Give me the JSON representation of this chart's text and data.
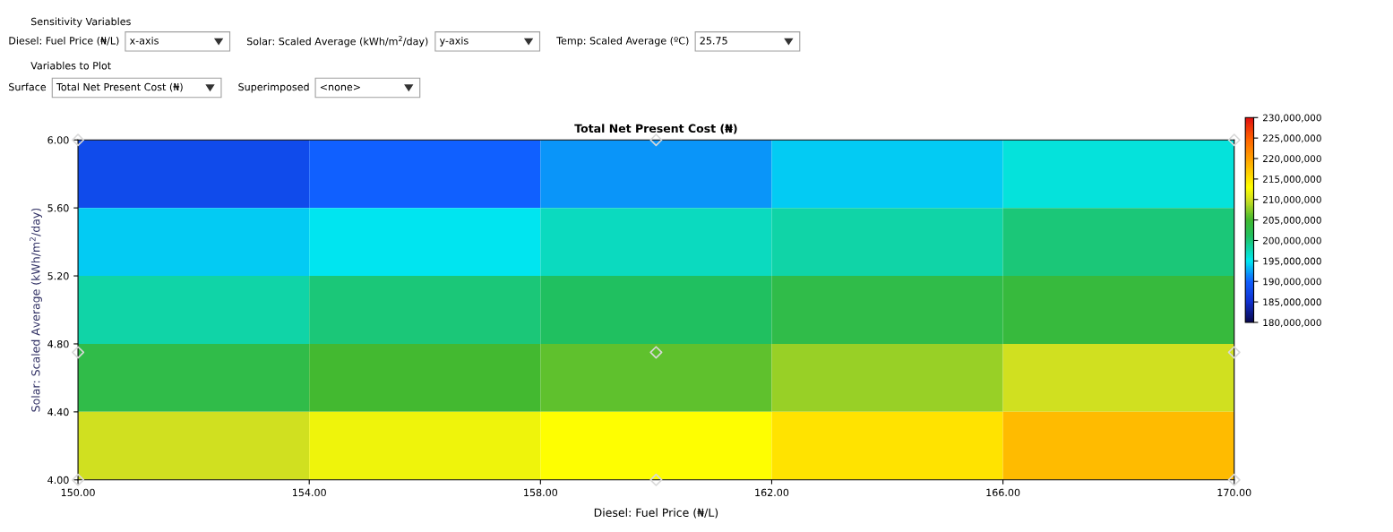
{
  "chart_data": {
    "type": "heatmap",
    "title": "Total Net Present Cost (₦)",
    "xlabel": "Diesel: Fuel Price (₦/L)",
    "ylabel": "Solar: Scaled Average (kWh/m$^{2}$/day)",
    "x": [
      152,
      156,
      160,
      164,
      168
    ],
    "y": [
      5.8,
      5.4,
      5.0,
      4.6,
      4.2
    ],
    "cells": [
      [
        188000000,
        190000000,
        192000000,
        194000000,
        196000000
      ],
      [
        194000000,
        195000000,
        197000000,
        198000000,
        200000000
      ],
      [
        198000000,
        200000000,
        201000000,
        203000000,
        204000000
      ],
      [
        203000000,
        205000000,
        206000000,
        208000000,
        210000000
      ],
      [
        210000000,
        212000000,
        213000000,
        215000000,
        218000000
      ]
    ],
    "clim": [
      180000000,
      230000000
    ],
    "cticks": [
      {
        "value": 180000000,
        "label": "180,000,000"
      },
      {
        "value": 185000000,
        "label": "185,000,000"
      },
      {
        "value": 190000000,
        "label": "190,000,000"
      },
      {
        "value": 195000000,
        "label": "195,000,000"
      },
      {
        "value": 200000000,
        "label": "200,000,000"
      },
      {
        "value": 205000000,
        "label": "205,000,000"
      },
      {
        "value": 210000000,
        "label": "210,000,000"
      },
      {
        "value": 215000000,
        "label": "215,000,000"
      },
      {
        "value": 220000000,
        "label": "220,000,000"
      },
      {
        "value": 225000000,
        "label": "225,000,000"
      },
      {
        "value": 230000000,
        "label": "230,000,000"
      }
    ],
    "xlim": [
      150,
      170
    ],
    "ylim": [
      4,
      6
    ],
    "xticks": [
      {
        "value": 150,
        "label": "150.00"
      },
      {
        "value": 154,
        "label": "154.00"
      },
      {
        "value": 158,
        "label": "158.00"
      },
      {
        "value": 162,
        "label": "162.00"
      },
      {
        "value": 166,
        "label": "166.00"
      },
      {
        "value": 170,
        "label": "170.00"
      }
    ],
    "yticks": [
      {
        "value": 4,
        "label": "4.00"
      },
      {
        "value": 4.4,
        "label": "4.40"
      },
      {
        "value": 4.8,
        "label": "4.80"
      },
      {
        "value": 5.2,
        "label": "5.20"
      },
      {
        "value": 5.6,
        "label": "5.60"
      },
      {
        "value": 6,
        "label": "6.00"
      }
    ],
    "series": [
      {
        "type": "scatter",
        "color": "#d8d8d8",
        "marker": "diamond",
        "x": [
          150,
          160,
          170,
          150,
          160,
          170,
          150,
          160,
          170
        ],
        "values": [
          6,
          6,
          6,
          4.75,
          4.75,
          4.75,
          4,
          4,
          4
        ]
      }
    ],
    "annotations": [
      "Sensitivity Variables",
      "Diesel: Fuel Price (₦/L)",
      "x-axis",
      "Solar: Scaled Average (kWh/m$^{2}$/day)",
      "y-axis",
      "Temp: Scaled Average (ºC)",
      "25.75",
      "Variables to Plot",
      "Surface",
      "Total Net Present Cost (₦)",
      "Superimposed",
      "<none>"
    ]
  }
}
